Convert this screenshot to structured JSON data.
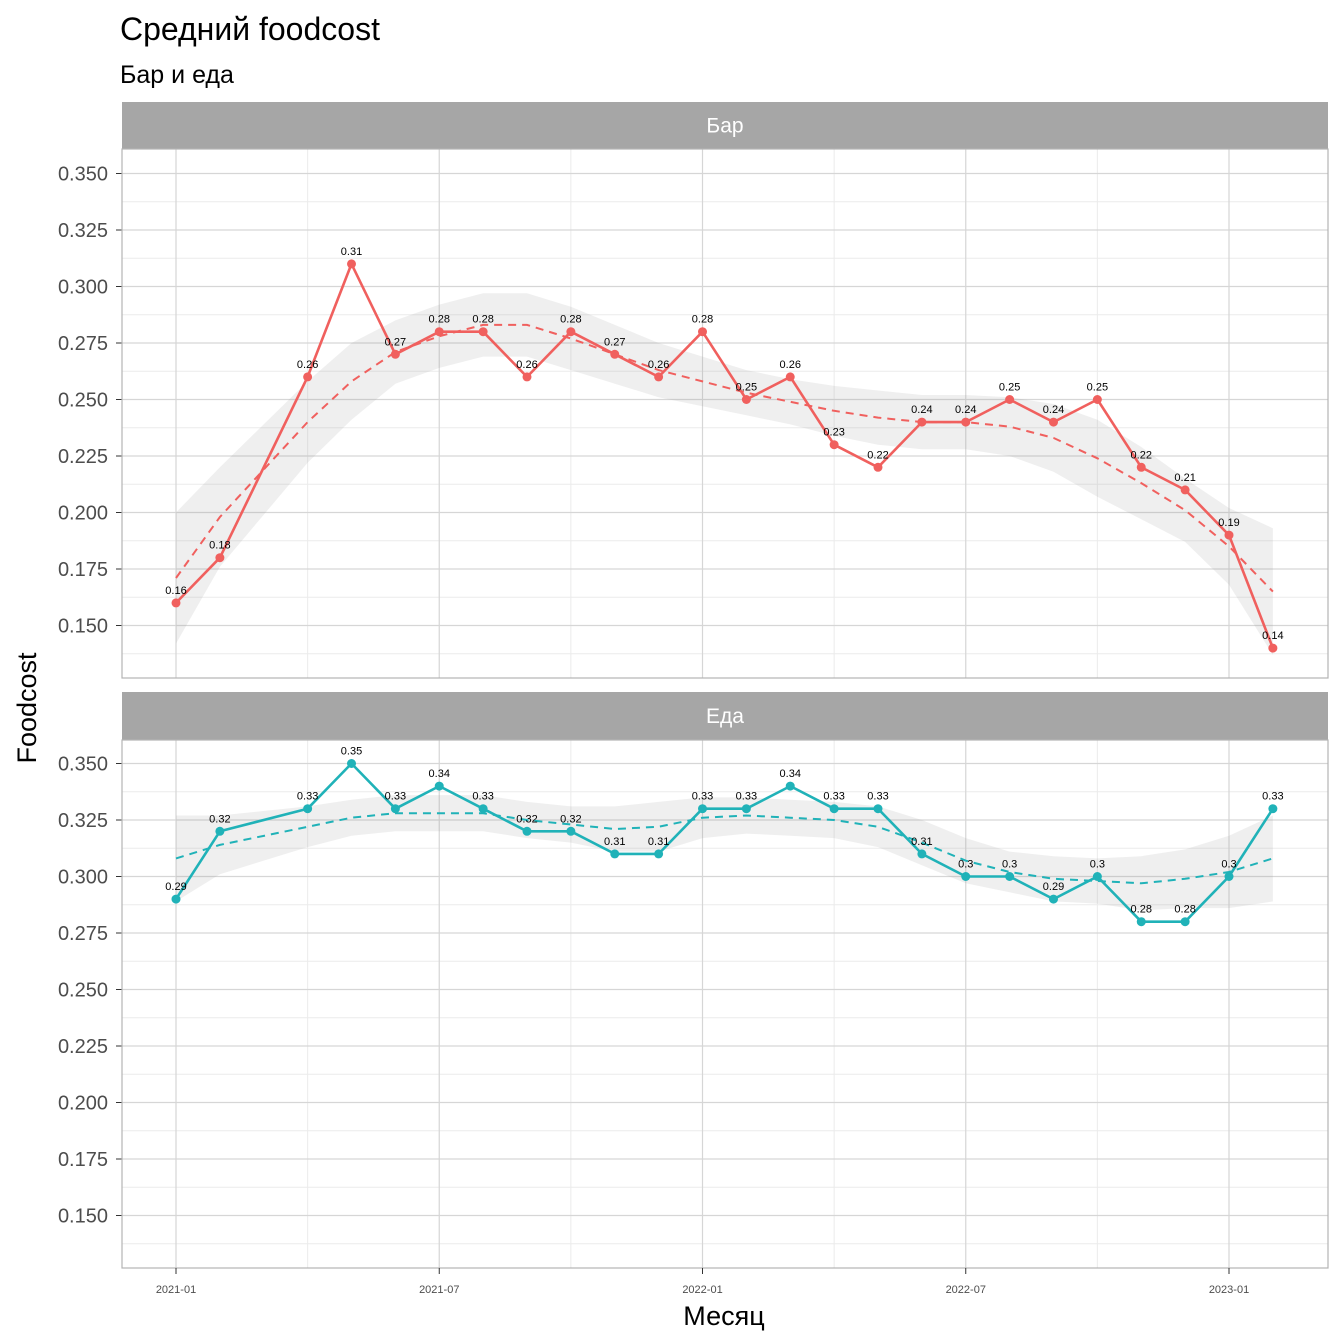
{
  "title": "Средний foodcost",
  "subtitle": "Бар и еда",
  "chart_data": {
    "type": "line",
    "xlabel": "Месяц",
    "ylabel": "Foodcost",
    "ylim": [
      0.13,
      0.36
    ],
    "yticks": [
      "0.150",
      "0.175",
      "0.200",
      "0.225",
      "0.250",
      "0.275",
      "0.300",
      "0.325",
      "0.350"
    ],
    "xticks": [
      "2021-01",
      "2021-07",
      "2022-01",
      "2022-07",
      "2023-01"
    ],
    "grid": true,
    "smooth_trend": "dashed loess with grey confidence band",
    "x": [
      "2021-01",
      "2021-02",
      "2021-04",
      "2021-05",
      "2021-06",
      "2021-07",
      "2021-08",
      "2021-09",
      "2021-10",
      "2021-11",
      "2021-12",
      "2022-01",
      "2022-02",
      "2022-03",
      "2022-04",
      "2022-05",
      "2022-06",
      "2022-07",
      "2022-08",
      "2022-09",
      "2022-10",
      "2022-11",
      "2022-12",
      "2023-01",
      "2023-02"
    ],
    "facets": [
      {
        "strip": "Бар",
        "color": "#F0605E",
        "values": [
          0.16,
          0.18,
          0.26,
          0.31,
          0.27,
          0.28,
          0.28,
          0.26,
          0.28,
          0.27,
          0.26,
          0.28,
          0.25,
          0.26,
          0.23,
          0.22,
          0.24,
          0.24,
          0.25,
          0.24,
          0.25,
          0.22,
          0.21,
          0.19,
          0.14
        ],
        "labels": [
          "0.16",
          "0.18",
          "0.26",
          "0.31",
          "0.27",
          "0.28",
          "0.28",
          "0.26",
          "0.28",
          "0.27",
          "0.26",
          "0.28",
          "0.25",
          "0.26",
          "0.23",
          "0.22",
          "0.24",
          "0.24",
          "0.25",
          "0.24",
          "0.25",
          "0.22",
          "0.21",
          "0.19",
          "0.14"
        ],
        "trend": [
          0.171,
          0.198,
          0.24,
          0.258,
          0.271,
          0.278,
          0.283,
          0.283,
          0.277,
          0.27,
          0.263,
          0.258,
          0.253,
          0.249,
          0.245,
          0.242,
          0.24,
          0.24,
          0.238,
          0.233,
          0.224,
          0.213,
          0.201,
          0.185,
          0.165
        ],
        "band_upper": [
          0.2,
          0.22,
          0.258,
          0.275,
          0.285,
          0.292,
          0.297,
          0.297,
          0.291,
          0.283,
          0.275,
          0.269,
          0.263,
          0.259,
          0.256,
          0.254,
          0.252,
          0.252,
          0.251,
          0.248,
          0.241,
          0.229,
          0.215,
          0.202,
          0.193
        ],
        "band_lower": [
          0.142,
          0.176,
          0.222,
          0.241,
          0.257,
          0.264,
          0.269,
          0.269,
          0.263,
          0.257,
          0.251,
          0.247,
          0.243,
          0.239,
          0.234,
          0.23,
          0.228,
          0.228,
          0.225,
          0.218,
          0.207,
          0.197,
          0.187,
          0.168,
          0.137
        ]
      },
      {
        "strip": "Еда",
        "color": "#20B2B8",
        "values": [
          0.29,
          0.32,
          0.33,
          0.35,
          0.33,
          0.34,
          0.33,
          0.32,
          0.32,
          0.31,
          0.31,
          0.33,
          0.33,
          0.34,
          0.33,
          0.33,
          0.31,
          0.3,
          0.3,
          0.29,
          0.3,
          0.28,
          0.28,
          0.3,
          0.33
        ],
        "labels": [
          "0.29",
          "0.32",
          "0.33",
          "0.35",
          "0.33",
          "0.34",
          "0.33",
          "0.32",
          "0.32",
          "0.31",
          "0.31",
          "0.33",
          "0.33",
          "0.34",
          "0.33",
          "0.33",
          "0.31",
          "0.3",
          "0.3",
          "0.29",
          "0.3",
          "0.28",
          "0.28",
          "0.3",
          "0.33"
        ],
        "trend": [
          0.308,
          0.314,
          0.322,
          0.326,
          0.328,
          0.328,
          0.328,
          0.325,
          0.323,
          0.321,
          0.322,
          0.326,
          0.327,
          0.326,
          0.325,
          0.322,
          0.315,
          0.307,
          0.302,
          0.299,
          0.298,
          0.297,
          0.299,
          0.302,
          0.308
        ],
        "band_upper": [
          0.327,
          0.327,
          0.331,
          0.334,
          0.336,
          0.336,
          0.336,
          0.333,
          0.331,
          0.331,
          0.333,
          0.335,
          0.335,
          0.334,
          0.333,
          0.331,
          0.325,
          0.317,
          0.311,
          0.309,
          0.308,
          0.309,
          0.312,
          0.318,
          0.327
        ],
        "band_lower": [
          0.289,
          0.301,
          0.313,
          0.318,
          0.32,
          0.32,
          0.32,
          0.317,
          0.315,
          0.311,
          0.311,
          0.317,
          0.319,
          0.318,
          0.317,
          0.313,
          0.305,
          0.297,
          0.293,
          0.289,
          0.288,
          0.285,
          0.286,
          0.286,
          0.289
        ]
      }
    ]
  }
}
